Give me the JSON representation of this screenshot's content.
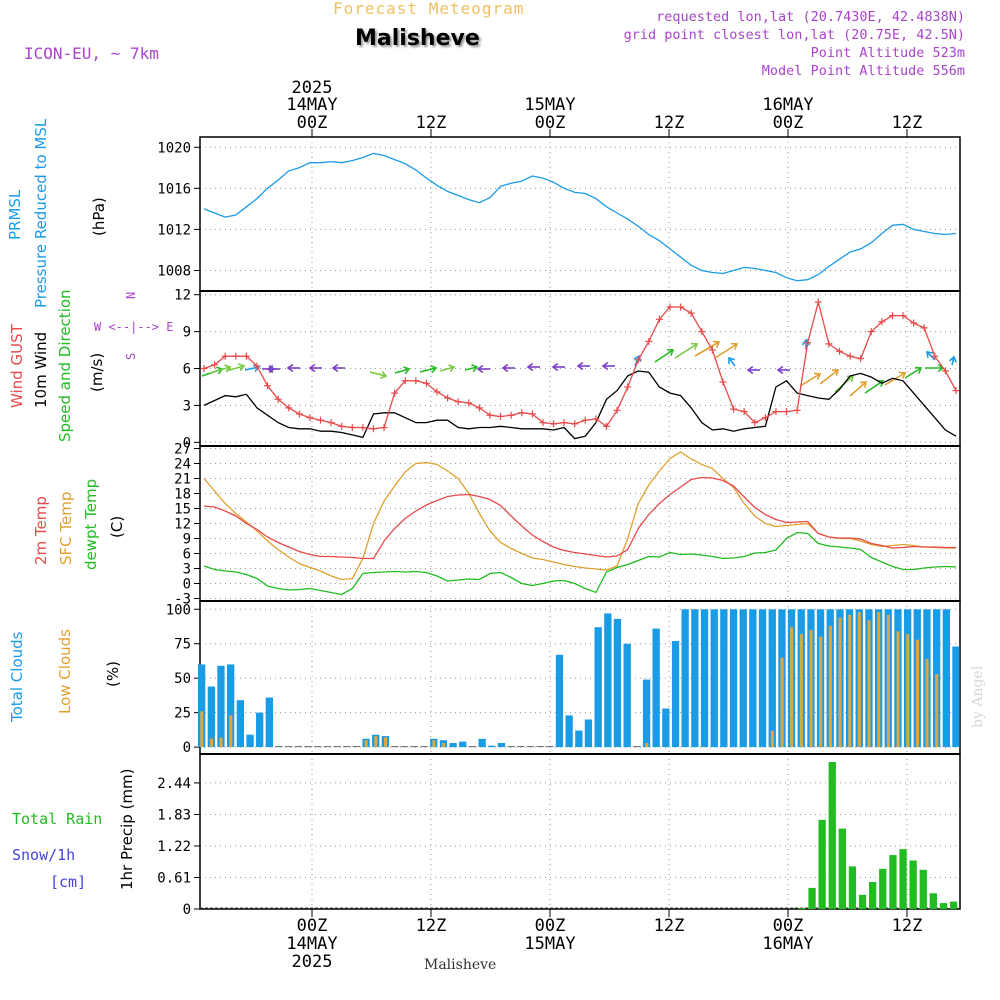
{
  "header": {
    "product": "Forecast Meteogram",
    "location": "Malisheve",
    "model": "ICON-EU, ~ 7km",
    "requested": "requested lon,lat (20.7430E, 42.4838N)",
    "gridpoint": "grid point closest lon,lat (20.75E, 42.5N)",
    "point_alt": "Point Altitude 523m",
    "model_alt": "Model Point Altitude 556m",
    "footer_location": "Malisheve",
    "watermark": "by Angel"
  },
  "colors": {
    "pressure": "#1a9be6",
    "gust": "#e84a4a",
    "wind": "#000000",
    "dir": "#22bb22",
    "temp2m": "#e84a4a",
    "sfc": "#e0a030",
    "dewpt": "#22bb22",
    "total_cloud": "#1a9be6",
    "low_cloud": "#d9a840",
    "rain": "#22bb22",
    "snow": "#4444dd",
    "header_orange": "#f0c060",
    "header_purple": "#aa44cc",
    "compass": "#aa44cc"
  },
  "panel_labels": {
    "pressure": [
      "PRMSL",
      "Pressure Reduced to MSL",
      "(hPa)"
    ],
    "wind": [
      "Wind GUST",
      "10m Wind",
      "Speed and Direction",
      "(m/s)"
    ],
    "compass": [
      "N",
      "S",
      "W <--|--> E"
    ],
    "temp": [
      "2m Temp",
      "SFC Temp",
      "dewpt Temp",
      "(C)"
    ],
    "cloud": [
      "Total Clouds",
      "Low Clouds",
      "(%)"
    ],
    "precip": [
      "Total  Rain",
      "Snow/1h",
      "[cm]",
      "1hr Precip (mm)"
    ]
  },
  "chart_data": [
    {
      "id": "pressure",
      "type": "line",
      "ylim": [
        1006,
        1021
      ],
      "yticks": [
        "1008",
        "1012",
        "1016",
        "1020"
      ],
      "series": [
        {
          "name": "PRMSL",
          "values": [
            1014.0,
            1013.6,
            1013.2,
            1013.4,
            1014.2,
            1015.0,
            1016.0,
            1016.8,
            1017.7,
            1018.0,
            1018.5,
            1018.5,
            1018.6,
            1018.5,
            1018.7,
            1019.0,
            1019.4,
            1019.2,
            1018.8,
            1018.4,
            1017.8,
            1017.0,
            1016.3,
            1015.7,
            1015.3,
            1014.9,
            1014.6,
            1015.1,
            1016.2,
            1016.5,
            1016.7,
            1017.2,
            1017.0,
            1016.6,
            1016.0,
            1015.6,
            1015.5,
            1015.0,
            1014.2,
            1013.6,
            1013.0,
            1012.3,
            1011.5,
            1010.9,
            1010.1,
            1009.3,
            1008.5,
            1008.0,
            1007.8,
            1007.7,
            1008.0,
            1008.3,
            1008.2,
            1008.0,
            1007.8,
            1007.3,
            1007.0,
            1007.1,
            1007.6,
            1008.4,
            1009.1,
            1009.8,
            1010.1,
            1010.7,
            1011.6,
            1012.4,
            1012.5,
            1012.0,
            1011.8,
            1011.6,
            1011.5,
            1011.6
          ]
        }
      ]
    },
    {
      "id": "wind",
      "type": "line",
      "ylim": [
        -0.3,
        12.3
      ],
      "yticks": [
        "0",
        "3",
        "6",
        "9",
        "12"
      ],
      "series": [
        {
          "name": "Wind GUST",
          "values": [
            6.0,
            6.3,
            7.0,
            7.0,
            7.0,
            6.2,
            4.6,
            3.5,
            2.8,
            2.3,
            2.0,
            1.8,
            1.6,
            1.3,
            1.2,
            1.2,
            1.1,
            1.2,
            4.0,
            5.0,
            5.0,
            4.8,
            4.1,
            3.6,
            3.3,
            3.2,
            2.8,
            2.2,
            2.1,
            2.2,
            2.4,
            2.3,
            1.6,
            1.5,
            1.6,
            1.5,
            1.8,
            1.9,
            1.3,
            2.6,
            4.5,
            6.7,
            8.2,
            10.0,
            11.0,
            11.0,
            10.5,
            9.0,
            7.5,
            4.9,
            2.7,
            2.5,
            1.6,
            2.0,
            2.5,
            2.5,
            2.6,
            8.1,
            11.4,
            8.0,
            7.4,
            7.0,
            6.8,
            9.0,
            9.8,
            10.3,
            10.3,
            9.7,
            9.3,
            7.0,
            5.8,
            4.2
          ]
        },
        {
          "name": "10m Wind",
          "values": [
            3.0,
            3.4,
            3.8,
            3.7,
            3.9,
            2.8,
            2.2,
            1.6,
            1.2,
            1.1,
            1.1,
            0.9,
            0.9,
            0.8,
            0.6,
            0.4,
            2.3,
            2.4,
            2.4,
            2.0,
            1.6,
            1.6,
            1.8,
            1.8,
            1.2,
            1.1,
            1.2,
            1.2,
            1.3,
            1.2,
            1.1,
            1.1,
            1.1,
            1.0,
            1.2,
            0.3,
            0.5,
            1.6,
            3.5,
            4.2,
            5.4,
            5.8,
            5.7,
            4.5,
            4.0,
            3.8,
            2.8,
            1.6,
            1.0,
            1.1,
            0.9,
            1.1,
            1.2,
            1.3,
            4.5,
            5.0,
            4.0,
            3.8,
            3.6,
            3.5,
            4.3,
            5.4,
            5.6,
            5.3,
            4.8,
            5.2,
            5.0,
            4.0,
            3.0,
            2.0,
            1.0,
            0.5
          ]
        }
      ]
    },
    {
      "id": "temp",
      "type": "line",
      "ylim": [
        -3.5,
        27.5
      ],
      "yticks": [
        "-3",
        "0",
        "3",
        "6",
        "9",
        "12",
        "15",
        "18",
        "21",
        "24",
        "27"
      ],
      "series": [
        {
          "name": "2m Temp",
          "values": [
            15.5,
            15.3,
            14.5,
            13.5,
            12.0,
            10.8,
            9.3,
            8.2,
            7.3,
            6.4,
            5.8,
            5.4,
            5.4,
            5.3,
            5.2,
            5.0,
            5.0,
            8.5,
            11.0,
            13.0,
            14.5,
            15.7,
            16.6,
            17.4,
            17.7,
            17.8,
            17.4,
            16.8,
            15.6,
            13.5,
            11.5,
            9.7,
            8.4,
            7.3,
            6.6,
            6.2,
            5.9,
            5.6,
            5.3,
            5.5,
            6.8,
            11.0,
            13.8,
            16.0,
            17.8,
            19.3,
            20.8,
            21.2,
            21.1,
            20.6,
            19.5,
            17.3,
            15.2,
            13.8,
            12.8,
            12.2,
            12.3,
            12.4,
            10.0,
            9.3,
            9.1,
            9.1,
            8.9,
            8.0,
            7.6,
            7.1,
            7.2,
            7.4,
            7.3,
            7.3,
            7.2,
            7.2
          ]
        },
        {
          "name": "SFC Temp",
          "values": [
            21.0,
            18.5,
            16.0,
            14.0,
            12.3,
            10.5,
            8.5,
            6.8,
            5.3,
            4.0,
            3.2,
            2.5,
            1.5,
            0.8,
            1.0,
            5.0,
            12.0,
            16.5,
            19.5,
            22.3,
            24.0,
            24.2,
            23.8,
            22.5,
            21.0,
            18.0,
            14.0,
            10.5,
            8.2,
            7.0,
            6.0,
            5.1,
            4.8,
            4.3,
            3.8,
            3.4,
            3.1,
            2.9,
            2.7,
            3.5,
            9.0,
            16.0,
            19.7,
            22.5,
            25.0,
            26.3,
            24.9,
            23.8,
            23.0,
            21.0,
            19.2,
            16.0,
            13.5,
            12.0,
            11.4,
            11.6,
            11.8,
            12.0,
            10.0,
            9.3,
            9.0,
            9.0,
            8.5,
            7.8,
            7.4,
            7.6,
            7.8,
            7.6,
            7.3,
            7.2,
            7.1,
            7.1
          ]
        },
        {
          "name": "dewpt Temp",
          "values": [
            3.5,
            2.8,
            2.5,
            2.3,
            1.8,
            1.0,
            -0.5,
            -1.0,
            -1.3,
            -1.2,
            -1.0,
            -1.4,
            -1.8,
            -2.2,
            -1.0,
            2.0,
            2.2,
            2.3,
            2.4,
            2.3,
            2.4,
            2.2,
            1.5,
            0.5,
            0.7,
            0.9,
            0.8,
            2.0,
            2.2,
            1.2,
            0.0,
            -0.4,
            0.0,
            0.5,
            0.6,
            0.0,
            -1.0,
            -1.8,
            2.3,
            3.2,
            3.8,
            4.6,
            5.4,
            5.3,
            6.2,
            5.8,
            5.9,
            5.7,
            5.4,
            5.0,
            5.1,
            5.4,
            6.1,
            6.2,
            6.7,
            9.0,
            10.2,
            10.0,
            8.0,
            7.5,
            7.3,
            7.1,
            6.8,
            5.2,
            4.3,
            3.4,
            2.8,
            2.8,
            3.1,
            3.3,
            3.4,
            3.3
          ]
        }
      ]
    },
    {
      "id": "cloud",
      "type": "bar",
      "ylim": [
        -5,
        106
      ],
      "yticks": [
        "0",
        "25",
        "50",
        "75",
        "100"
      ],
      "series": [
        {
          "name": "Total Clouds",
          "values": [
            60,
            44,
            59,
            60,
            34,
            9,
            25,
            36,
            0,
            0,
            0,
            0,
            0,
            0,
            0,
            0,
            0,
            6,
            9,
            8,
            0,
            0,
            0,
            0,
            6,
            5,
            3,
            4,
            0,
            6,
            1,
            3,
            0,
            0,
            0,
            0,
            0,
            67,
            23,
            12,
            20,
            87,
            97,
            93,
            75,
            0,
            49,
            86,
            28,
            77,
            100,
            100,
            100,
            100,
            100,
            100,
            100,
            100,
            100,
            100,
            100,
            100,
            100,
            100,
            100,
            100,
            100,
            100,
            100,
            100,
            100,
            100,
            100,
            100,
            100,
            100,
            100,
            100,
            73
          ]
        },
        {
          "name": "Low Clouds",
          "values": [
            26,
            6,
            7,
            23,
            0,
            0,
            0,
            0,
            0,
            0,
            0,
            0,
            0,
            0,
            0,
            0,
            0,
            5,
            8,
            7,
            0,
            0,
            0,
            0,
            5,
            3,
            0,
            0,
            0,
            0,
            0,
            0,
            0,
            0,
            0,
            0,
            0,
            0,
            0,
            0,
            0,
            0,
            0,
            0,
            0,
            0,
            3,
            0,
            0,
            0,
            0,
            0,
            0,
            0,
            0,
            0,
            0,
            0,
            0,
            12,
            65,
            87,
            82,
            85,
            80,
            88,
            94,
            96,
            98,
            92,
            98,
            96,
            84,
            82,
            78,
            64,
            53
          ]
        }
      ]
    },
    {
      "id": "precip",
      "type": "bar",
      "ylim": [
        0,
        3.0
      ],
      "yticks": [
        "0",
        "0.61",
        "1.22",
        "1.83",
        "2.44"
      ],
      "series": [
        {
          "name": "Total Rain",
          "values": [
            0,
            0,
            0,
            0,
            0,
            0,
            0,
            0,
            0,
            0,
            0,
            0,
            0,
            0,
            0,
            0,
            0,
            0,
            0,
            0,
            0,
            0,
            0,
            0,
            0,
            0,
            0,
            0,
            0,
            0,
            0,
            0,
            0,
            0,
            0,
            0,
            0,
            0,
            0,
            0,
            0,
            0,
            0,
            0,
            0,
            0,
            0,
            0,
            0,
            0,
            0,
            0,
            0,
            0,
            0,
            0,
            0,
            0,
            0,
            0.02,
            0.43,
            1.82,
            3.0,
            1.64,
            0.87,
            0.29,
            0.55,
            0.82,
            1.1,
            1.22,
            0.99,
            0.8,
            0.32,
            0.12,
            0.15
          ]
        }
      ]
    }
  ],
  "time_axis": {
    "top_labels": [
      {
        "line1": "2025",
        "line2": "14MAY",
        "line3": "00Z"
      },
      {
        "line1": "",
        "line2": "",
        "line3": "12Z"
      },
      {
        "line1": "",
        "line2": "15MAY",
        "line3": "00Z"
      },
      {
        "line1": "",
        "line2": "",
        "line3": "12Z"
      },
      {
        "line1": "",
        "line2": "16MAY",
        "line3": "00Z"
      },
      {
        "line1": "",
        "line2": "",
        "line3": "12Z"
      }
    ],
    "bottom_labels": [
      {
        "line1": "00Z",
        "line2": "14MAY",
        "line3": "2025"
      },
      {
        "line1": "12Z",
        "line2": "",
        "line3": ""
      },
      {
        "line1": "00Z",
        "line2": "15MAY",
        "line3": ""
      },
      {
        "line1": "12Z",
        "line2": "",
        "line3": ""
      },
      {
        "line1": "00Z",
        "line2": "16MAY",
        "line3": ""
      },
      {
        "line1": "12Z",
        "line2": "",
        "line3": ""
      }
    ]
  }
}
